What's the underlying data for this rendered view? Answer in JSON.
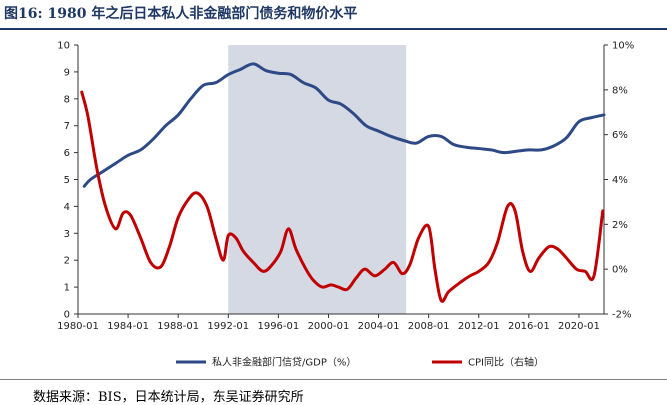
{
  "title": "图16:  1980 年之后日本私人非金融部门债务和物价水平",
  "source": "数据来源：BIS，日本统计局，东吴证券研究所",
  "chart_data": {
    "type": "line",
    "title": "图16:  1980 年之后日本私人非金融部门债务和物价水平",
    "x_ticks": [
      "1980-01",
      "1984-01",
      "1988-01",
      "1992-01",
      "1996-01",
      "2000-01",
      "2004-01",
      "2008-01",
      "2012-01",
      "2016-01",
      "2020-01"
    ],
    "x_range": [
      1980.0,
      2022.0
    ],
    "y_left": {
      "range": [
        0,
        10
      ],
      "ticks": [
        "0",
        "1",
        "2",
        "3",
        "4",
        "5",
        "6",
        "7",
        "8",
        "9",
        "10"
      ]
    },
    "y_right": {
      "range": [
        -2,
        10
      ],
      "ticks": [
        "-2%",
        "0%",
        "2%",
        "4%",
        "6%",
        "8%",
        "10%"
      ]
    },
    "shaded_region": {
      "from": 1992.0,
      "to": 2006.2,
      "color": "#d5d9e3"
    },
    "series": [
      {
        "name": "私人非金融部门信贷/GDP（%）",
        "axis": "left",
        "color": "#2e4a86",
        "x": [
          1980.5,
          1981,
          1982,
          1983,
          1984,
          1985,
          1986,
          1987,
          1988,
          1989,
          1990,
          1991,
          1992,
          1993,
          1994,
          1995,
          1996,
          1997,
          1998,
          1999,
          2000,
          2001,
          2002,
          2003,
          2004,
          2005,
          2006,
          2007,
          2008,
          2009,
          2010,
          2011,
          2012,
          2013,
          2014,
          2015,
          2016,
          2017,
          2018,
          2019,
          2020,
          2021,
          2022
        ],
        "values": [
          4.75,
          5.0,
          5.3,
          5.6,
          5.9,
          6.1,
          6.5,
          7.0,
          7.4,
          8.0,
          8.5,
          8.6,
          8.9,
          9.1,
          9.3,
          9.05,
          8.95,
          8.9,
          8.6,
          8.4,
          7.95,
          7.8,
          7.45,
          7.0,
          6.8,
          6.6,
          6.45,
          6.35,
          6.6,
          6.6,
          6.3,
          6.2,
          6.15,
          6.1,
          6.0,
          6.05,
          6.1,
          6.1,
          6.25,
          6.55,
          7.15,
          7.3,
          7.4
        ]
      },
      {
        "name": "CPI同比（右轴）",
        "axis": "right",
        "color": "#c00000",
        "x": [
          1980.3,
          1980.8,
          1981.5,
          1982.2,
          1983.0,
          1983.6,
          1984.2,
          1985.0,
          1985.8,
          1986.6,
          1987.3,
          1988.0,
          1988.8,
          1989.5,
          1990.3,
          1991.0,
          1991.6,
          1992.0,
          1992.6,
          1993.2,
          1994.0,
          1994.8,
          1995.5,
          1996.2,
          1996.8,
          1997.4,
          1998.2,
          1998.8,
          1999.5,
          2000.2,
          2000.8,
          2001.5,
          2002.2,
          2002.9,
          2003.7,
          2004.5,
          2005.2,
          2005.9,
          2006.5,
          2007.2,
          2008.0,
          2008.5,
          2009.0,
          2009.6,
          2010.5,
          2011.3,
          2012.0,
          2012.8,
          2013.5,
          2014.3,
          2014.9,
          2015.5,
          2016.1,
          2016.8,
          2017.6,
          2018.3,
          2019.0,
          2019.8,
          2020.5,
          2021.2,
          2021.9
        ],
        "values": [
          7.9,
          6.8,
          4.5,
          2.8,
          1.8,
          2.5,
          2.4,
          1.4,
          0.3,
          0.1,
          1.0,
          2.3,
          3.1,
          3.4,
          2.8,
          1.4,
          0.4,
          1.5,
          1.4,
          0.8,
          0.3,
          -0.1,
          0.2,
          0.8,
          1.8,
          0.9,
          0.0,
          -0.5,
          -0.8,
          -0.7,
          -0.8,
          -0.9,
          -0.4,
          0.0,
          -0.3,
          0.0,
          0.3,
          -0.2,
          0.2,
          1.4,
          1.9,
          0.0,
          -1.4,
          -1.0,
          -0.6,
          -0.3,
          -0.1,
          0.3,
          1.2,
          2.8,
          2.6,
          0.8,
          -0.1,
          0.5,
          1.0,
          0.9,
          0.5,
          0.0,
          -0.1,
          -0.3,
          2.6
        ]
      }
    ],
    "legend": {
      "position": "bottom"
    }
  }
}
